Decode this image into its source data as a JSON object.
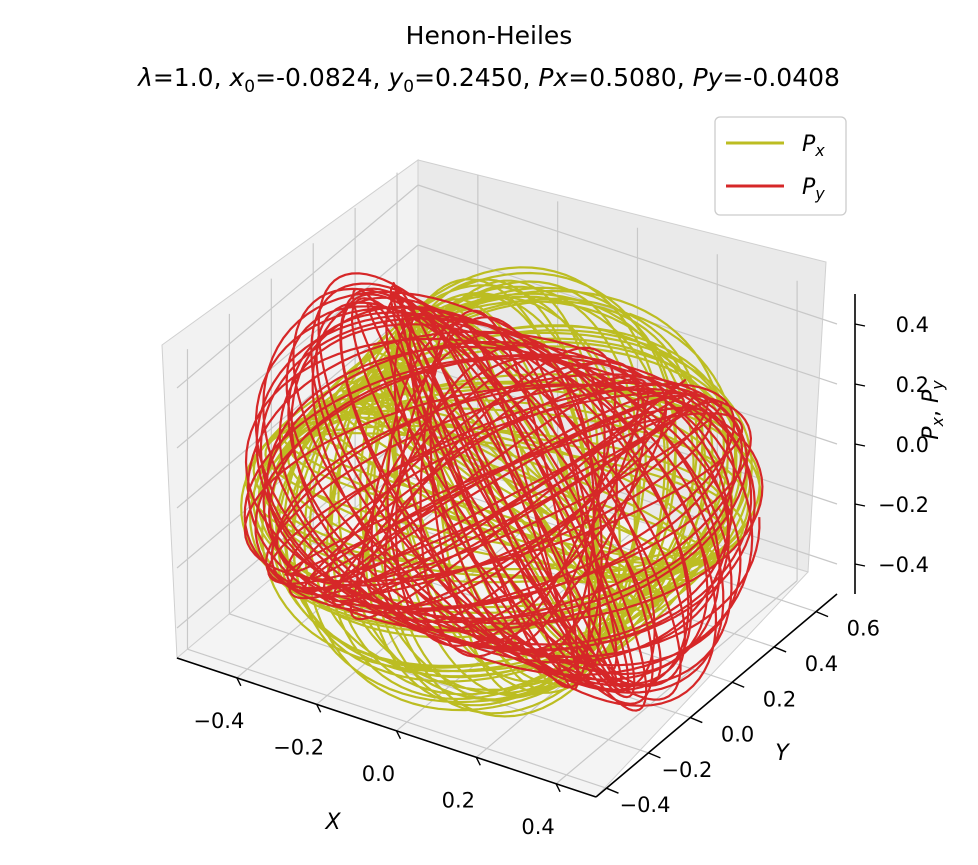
{
  "chart_data": {
    "type": "line",
    "projection": "3d",
    "title": "Henon-Heiles",
    "subtitle": {
      "lambda_label": "λ",
      "lambda": "=1.0, ",
      "x0_label": "x",
      "x0_sub": "0",
      "x0": "=-0.0824, ",
      "y0_label": "y",
      "y0_sub": "0",
      "y0": "=0.2450, ",
      "px_label": "Px",
      "px": "=0.5080, ",
      "py_label": "Py",
      "py": "=-0.0408"
    },
    "xlabel": "X",
    "ylabel": "Y",
    "zlabel": {
      "p": "P",
      "x": "x",
      "sep": ", ",
      "y": "y"
    },
    "xticks": [
      "−0.4",
      "−0.2",
      "0.0",
      "0.2",
      "0.4"
    ],
    "yticks": [
      "−0.4",
      "−0.2",
      "0.0",
      "0.2",
      "0.4",
      "0.6"
    ],
    "zticks": [
      "−0.4",
      "−0.2",
      "0.0",
      "0.2",
      "0.4"
    ],
    "xlim": [
      -0.55,
      0.5
    ],
    "ylim": [
      -0.45,
      0.7
    ],
    "zlim": [
      -0.5,
      0.5
    ],
    "grid": true,
    "legend_position": "upper-right",
    "series": [
      {
        "name": "x",
        "label_base": "P",
        "label_sub": "x",
        "color": "#bcbd22",
        "x_amplitude": 0.46,
        "y_amplitude": 0.42,
        "y_center": 0.05,
        "z_amplitude": 0.47
      },
      {
        "name": "y",
        "label_base": "P",
        "label_sub": "y",
        "color": "#d62728",
        "x_amplitude": 0.46,
        "y_amplitude": 0.42,
        "y_center": 0.05,
        "z_amplitude": 0.47
      }
    ]
  }
}
